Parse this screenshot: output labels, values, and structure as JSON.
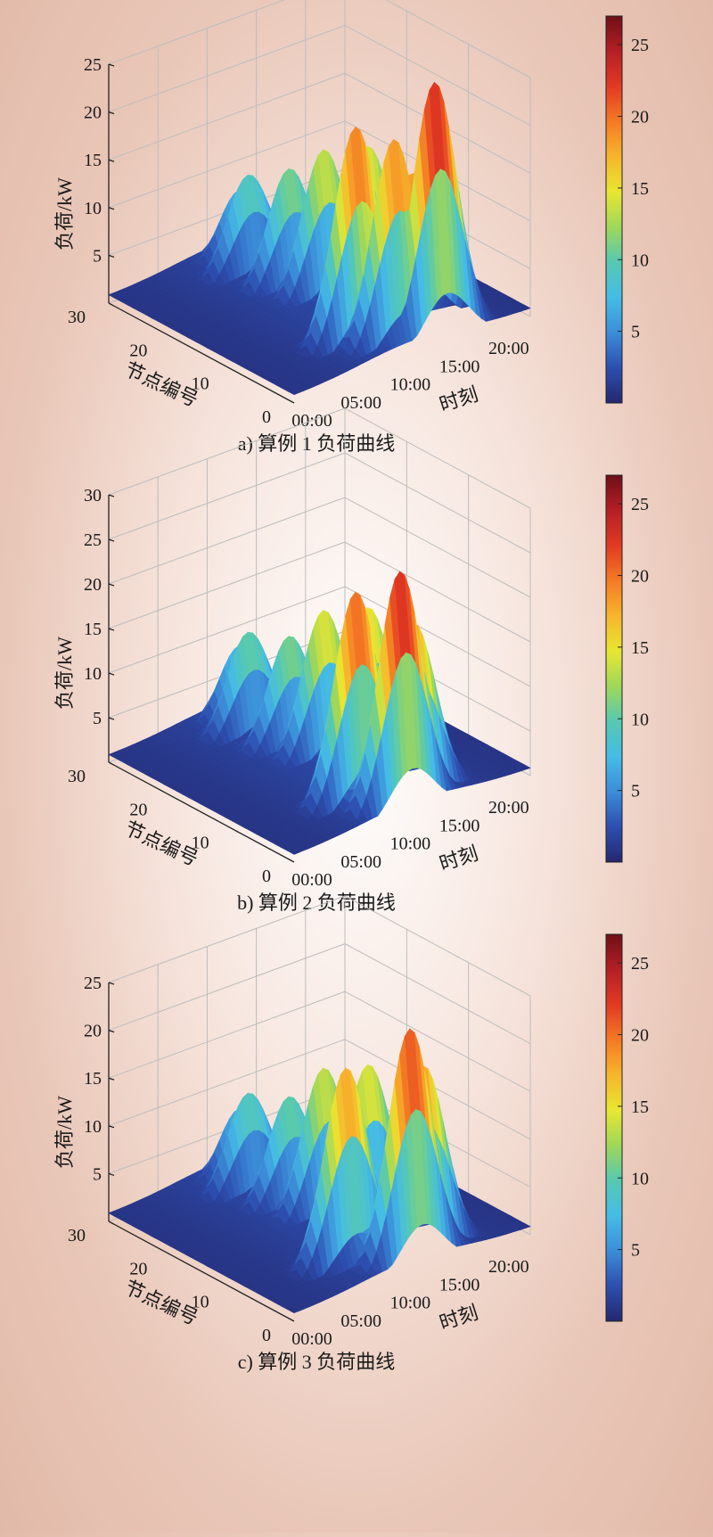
{
  "chart_data": [
    {
      "type": "surface3d",
      "caption": "a) 算例 1 负荷曲线",
      "xlabel": "时刻",
      "ylabel": "节点编号",
      "zlabel": "负荷/kW",
      "x_ticks": [
        "00:00",
        "05:00",
        "10:00",
        "15:00",
        "20:00"
      ],
      "y_ticks": [
        "0",
        "10",
        "20",
        "30"
      ],
      "z_ticks": [
        "5",
        "10",
        "15",
        "20",
        "25"
      ],
      "zlim": [
        0,
        25
      ],
      "colorbar": {
        "ticks": [
          "5",
          "10",
          "15",
          "20",
          "25"
        ],
        "range": [
          0,
          27
        ]
      },
      "peaks": [
        {
          "node": 2,
          "hour": 15.5,
          "load": 27
        },
        {
          "node": 3,
          "hour": 12,
          "load": 22
        },
        {
          "node": 6,
          "hour": 10,
          "load": 23
        },
        {
          "node": 12,
          "hour": 15,
          "load": 17
        },
        {
          "node": 16,
          "hour": 13,
          "load": 16
        },
        {
          "node": 20,
          "hour": 12,
          "load": 13
        },
        {
          "node": 25,
          "hour": 11,
          "load": 11
        },
        {
          "node": 28,
          "hour": 12,
          "load": 8
        }
      ]
    },
    {
      "type": "surface3d",
      "caption": "b) 算例 2 负荷曲线",
      "xlabel": "时刻",
      "ylabel": "节点编号",
      "zlabel": "负荷/kW",
      "x_ticks": [
        "00:00",
        "05:00",
        "10:00",
        "15:00",
        "20:00"
      ],
      "y_ticks": [
        "0",
        "10",
        "20",
        "30"
      ],
      "z_ticks": [
        "5",
        "10",
        "15",
        "20",
        "25",
        "30"
      ],
      "zlim": [
        0,
        30
      ],
      "colorbar": {
        "ticks": [
          "5",
          "10",
          "15",
          "20",
          "25"
        ],
        "range": [
          0,
          27
        ]
      },
      "peaks": [
        {
          "node": 2,
          "hour": 12,
          "load": 27
        },
        {
          "node": 3,
          "hour": 14,
          "load": 20
        },
        {
          "node": 6,
          "hour": 10,
          "load": 24
        },
        {
          "node": 12,
          "hour": 15,
          "load": 18
        },
        {
          "node": 16,
          "hour": 13,
          "load": 17
        },
        {
          "node": 20,
          "hour": 12,
          "load": 13
        },
        {
          "node": 25,
          "hour": 11,
          "load": 12
        },
        {
          "node": 28,
          "hour": 12,
          "load": 9
        }
      ]
    },
    {
      "type": "surface3d",
      "caption": "c) 算例 3 负荷曲线",
      "xlabel": "时刻",
      "ylabel": "节点编号",
      "zlabel": "负荷/kW",
      "x_ticks": [
        "00:00",
        "05:00",
        "10:00",
        "15:00",
        "20:00"
      ],
      "y_ticks": [
        "0",
        "10",
        "20",
        "30"
      ],
      "z_ticks": [
        "5",
        "10",
        "15",
        "20",
        "25"
      ],
      "zlim": [
        0,
        25
      ],
      "colorbar": {
        "ticks": [
          "5",
          "10",
          "15",
          "20",
          "25"
        ],
        "range": [
          0,
          27
        ]
      },
      "peaks": [
        {
          "node": 2,
          "hour": 13,
          "load": 25
        },
        {
          "node": 3,
          "hour": 15,
          "load": 20
        },
        {
          "node": 6,
          "hour": 9,
          "load": 21
        },
        {
          "node": 12,
          "hour": 15,
          "load": 17
        },
        {
          "node": 16,
          "hour": 13,
          "load": 16
        },
        {
          "node": 20,
          "hour": 12,
          "load": 12
        },
        {
          "node": 25,
          "hour": 11,
          "load": 11
        },
        {
          "node": 28,
          "hour": 12,
          "load": 8
        }
      ]
    }
  ],
  "colormap": [
    "#25276f",
    "#2d4fb0",
    "#3c8dd9",
    "#45bce5",
    "#56c9b0",
    "#9fd75a",
    "#e8e632",
    "#f7b52c",
    "#f47a24",
    "#e23a23",
    "#b51f24",
    "#6e0f17"
  ]
}
